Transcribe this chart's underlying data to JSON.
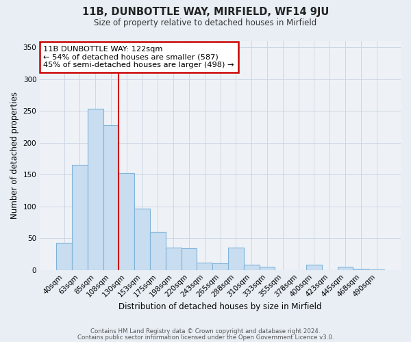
{
  "title": "11B, DUNBOTTLE WAY, MIRFIELD, WF14 9JU",
  "subtitle": "Size of property relative to detached houses in Mirfield",
  "xlabel": "Distribution of detached houses by size in Mirfield",
  "ylabel": "Number of detached properties",
  "bar_labels": [
    "40sqm",
    "63sqm",
    "85sqm",
    "108sqm",
    "130sqm",
    "153sqm",
    "175sqm",
    "198sqm",
    "220sqm",
    "243sqm",
    "265sqm",
    "288sqm",
    "310sqm",
    "333sqm",
    "355sqm",
    "378sqm",
    "400sqm",
    "423sqm",
    "445sqm",
    "468sqm",
    "490sqm"
  ],
  "bar_values": [
    43,
    165,
    254,
    228,
    152,
    96,
    60,
    35,
    34,
    11,
    10,
    35,
    8,
    5,
    0,
    0,
    8,
    0,
    5,
    2,
    1
  ],
  "bar_color": "#c9ddf0",
  "bar_edge_color": "#7fb3d8",
  "vline_color": "#cc0000",
  "annotation_text": "11B DUNBOTTLE WAY: 122sqm\n← 54% of detached houses are smaller (587)\n45% of semi-detached houses are larger (498) →",
  "annotation_box_color": "white",
  "annotation_box_edge": "#cc0000",
  "ylim": [
    0,
    360
  ],
  "yticks": [
    0,
    50,
    100,
    150,
    200,
    250,
    300,
    350
  ],
  "footer1": "Contains HM Land Registry data © Crown copyright and database right 2024.",
  "footer2": "Contains public sector information licensed under the Open Government Licence v3.0.",
  "background_color": "#e8eef4",
  "plot_bg_color": "#eef2f7"
}
